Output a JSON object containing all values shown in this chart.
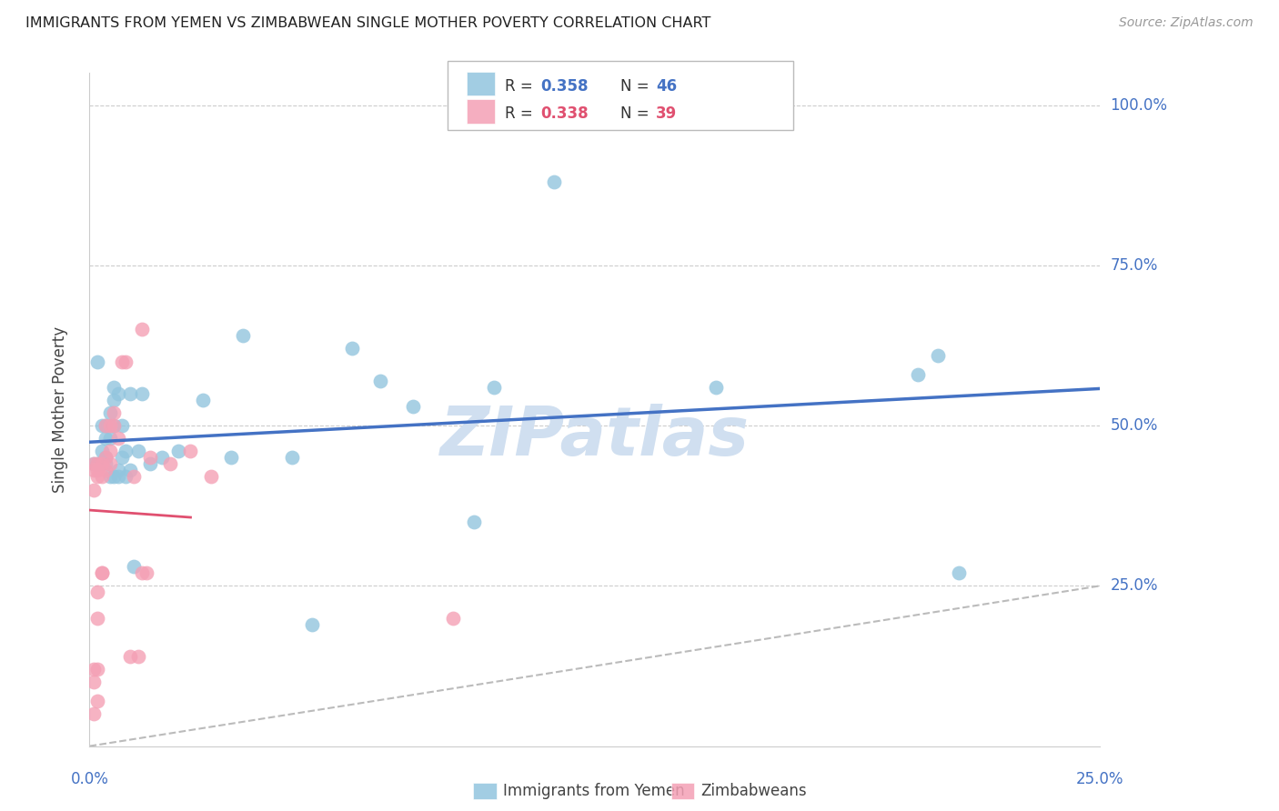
{
  "title": "IMMIGRANTS FROM YEMEN VS ZIMBABWEAN SINGLE MOTHER POVERTY CORRELATION CHART",
  "source": "Source: ZipAtlas.com",
  "ylabel": "Single Mother Poverty",
  "xlim": [
    0.0,
    0.25
  ],
  "ylim": [
    0.0,
    1.05
  ],
  "legend_r1": "0.358",
  "legend_n1": "46",
  "legend_r2": "0.338",
  "legend_n2": "39",
  "color_blue": "#92c5de",
  "color_pink": "#f4a0b5",
  "color_line_blue": "#4472c4",
  "color_line_pink": "#e05070",
  "color_diag": "#bbbbbb",
  "color_text_blue": "#4472c4",
  "color_text_pink": "#e05070",
  "color_title": "#222222",
  "color_source": "#999999",
  "scatter_blue_x": [
    0.001,
    0.002,
    0.002,
    0.003,
    0.003,
    0.004,
    0.004,
    0.004,
    0.004,
    0.005,
    0.005,
    0.005,
    0.006,
    0.006,
    0.006,
    0.006,
    0.007,
    0.007,
    0.007,
    0.008,
    0.008,
    0.009,
    0.009,
    0.01,
    0.01,
    0.011,
    0.012,
    0.013,
    0.015,
    0.018,
    0.022,
    0.028,
    0.035,
    0.038,
    0.05,
    0.055,
    0.065,
    0.072,
    0.08,
    0.095,
    0.1,
    0.115,
    0.155,
    0.205,
    0.21,
    0.215
  ],
  "scatter_blue_y": [
    0.44,
    0.6,
    0.44,
    0.46,
    0.5,
    0.45,
    0.48,
    0.5,
    0.44,
    0.42,
    0.48,
    0.52,
    0.56,
    0.54,
    0.42,
    0.5,
    0.55,
    0.43,
    0.42,
    0.5,
    0.45,
    0.42,
    0.46,
    0.55,
    0.43,
    0.28,
    0.46,
    0.55,
    0.44,
    0.45,
    0.46,
    0.54,
    0.45,
    0.64,
    0.45,
    0.19,
    0.62,
    0.57,
    0.53,
    0.35,
    0.56,
    0.88,
    0.56,
    0.58,
    0.61,
    0.27
  ],
  "scatter_pink_x": [
    0.001,
    0.001,
    0.001,
    0.001,
    0.001,
    0.001,
    0.002,
    0.002,
    0.002,
    0.002,
    0.002,
    0.002,
    0.002,
    0.003,
    0.003,
    0.003,
    0.003,
    0.004,
    0.004,
    0.004,
    0.005,
    0.005,
    0.005,
    0.006,
    0.006,
    0.007,
    0.008,
    0.009,
    0.01,
    0.011,
    0.012,
    0.013,
    0.013,
    0.014,
    0.015,
    0.02,
    0.025,
    0.03,
    0.09
  ],
  "scatter_pink_y": [
    0.05,
    0.1,
    0.12,
    0.4,
    0.43,
    0.44,
    0.07,
    0.12,
    0.2,
    0.24,
    0.42,
    0.43,
    0.44,
    0.27,
    0.27,
    0.42,
    0.44,
    0.43,
    0.45,
    0.5,
    0.44,
    0.46,
    0.5,
    0.5,
    0.52,
    0.48,
    0.6,
    0.6,
    0.14,
    0.42,
    0.14,
    0.65,
    0.27,
    0.27,
    0.45,
    0.44,
    0.46,
    0.42,
    0.2
  ],
  "grid_color": "#cccccc",
  "background_color": "#ffffff",
  "watermark_text": "ZIPatlas",
  "watermark_color": "#d0dff0"
}
